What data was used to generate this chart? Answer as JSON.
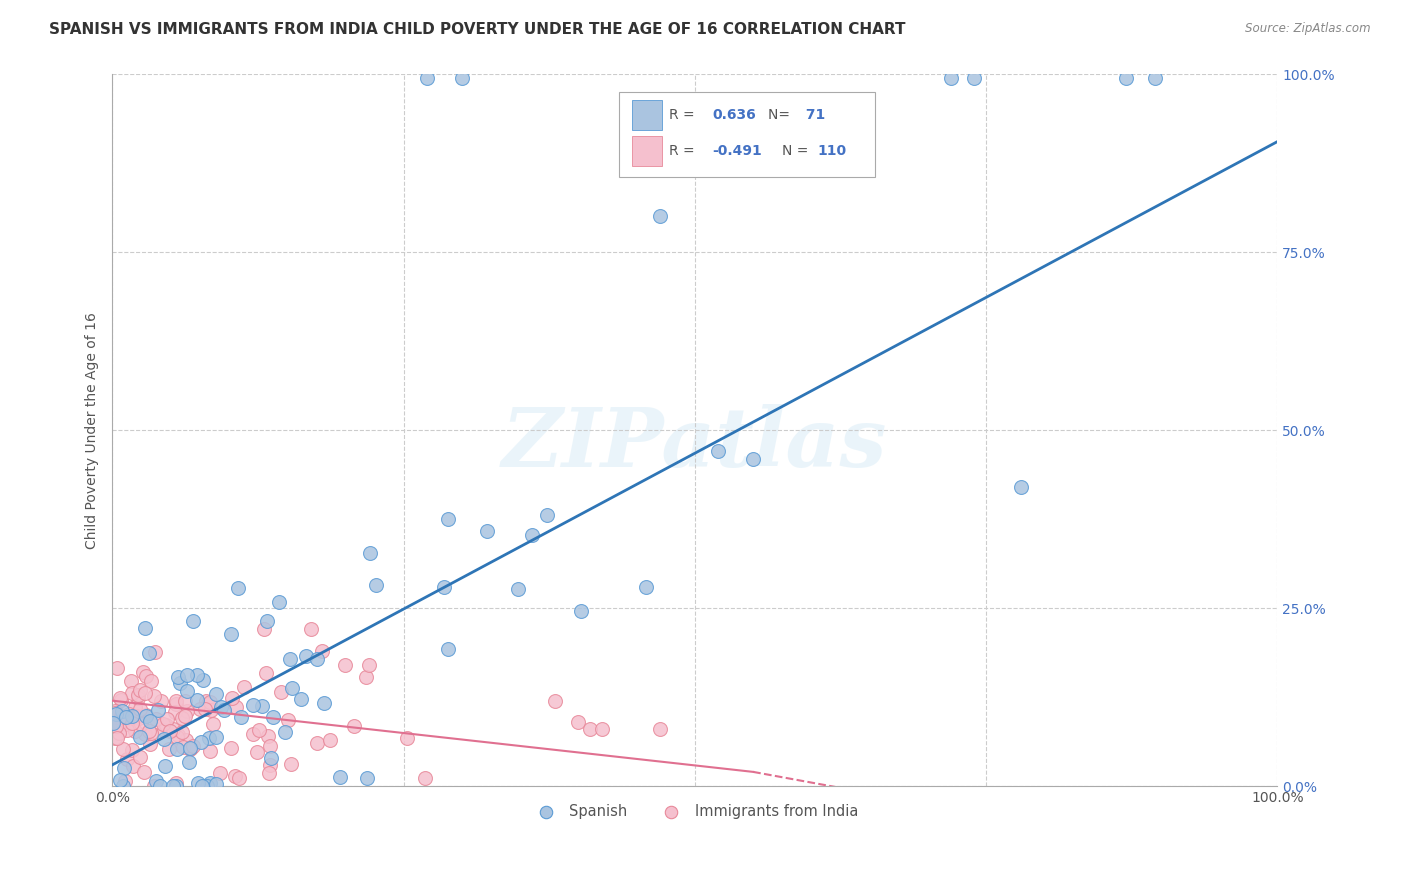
{
  "title": "SPANISH VS IMMIGRANTS FROM INDIA CHILD POVERTY UNDER THE AGE OF 16 CORRELATION CHART",
  "source": "Source: ZipAtlas.com",
  "ylabel": "Child Poverty Under the Age of 16",
  "xlim": [
    0,
    1
  ],
  "ylim": [
    0,
    1
  ],
  "xtick_vals": [
    0,
    0.25,
    0.5,
    0.75,
    1.0
  ],
  "ytick_vals": [
    0,
    0.25,
    0.5,
    0.75,
    1.0
  ],
  "xtick_labels": [
    "0.0%",
    "",
    "",
    "",
    "100.0%"
  ],
  "ytick_labels_right": [
    "0.0%",
    "25.0%",
    "50.0%",
    "75.0%",
    "100.0%"
  ],
  "background_color": "#ffffff",
  "watermark_text": "ZIPatlas",
  "series1_color": "#aac4e0",
  "series1_edge_color": "#5b9bd5",
  "series1_line_color": "#2e75b6",
  "series2_color": "#f5c0ce",
  "series2_edge_color": "#e8899a",
  "series2_line_color": "#e07090",
  "series1_label": "Spanish",
  "series2_label": "Immigrants from India",
  "R1": 0.636,
  "N1": 71,
  "R2": -0.491,
  "N2": 110,
  "blue_line": [
    0.0,
    0.03,
    1.0,
    0.905
  ],
  "pink_line_solid": [
    0.0,
    0.12,
    0.55,
    0.02
  ],
  "pink_line_dash": [
    0.55,
    0.02,
    0.65,
    -0.01
  ],
  "grid_color": "#cccccc",
  "title_fontsize": 11,
  "axis_label_fontsize": 10,
  "tick_fontsize": 10,
  "right_tick_color": "#4472c4",
  "legend_text_color": "#4472c4",
  "legend_label_color": "#555555"
}
